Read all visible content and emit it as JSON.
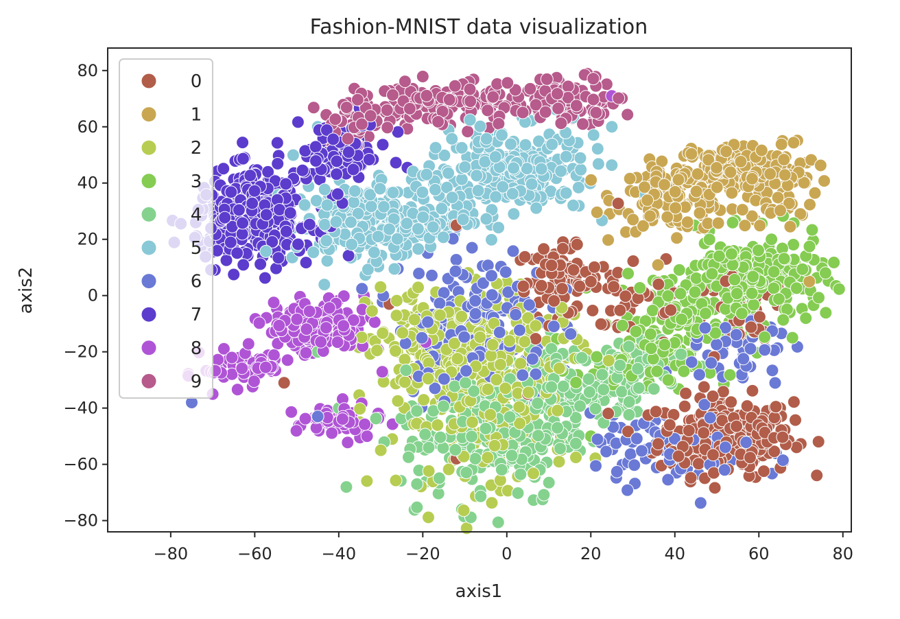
{
  "chart_data": {
    "type": "scatter",
    "title": "Fashion-MNIST data visualization",
    "xlabel": "axis1",
    "ylabel": "axis2",
    "xlim": [
      -95,
      82
    ],
    "ylim": [
      -84,
      88
    ],
    "xticks": [
      -80,
      -60,
      -40,
      -20,
      0,
      20,
      40,
      60,
      80
    ],
    "yticks": [
      -80,
      -60,
      -40,
      -20,
      0,
      20,
      40,
      60,
      80
    ],
    "grid": false,
    "legend_position": "upper-left",
    "series": [
      {
        "name": "0",
        "color": "#b15d4a",
        "clusters": [
          {
            "x": 52,
            "y": -50,
            "sx": 8,
            "sy": 7,
            "n": 260
          },
          {
            "x": 12,
            "y": 5,
            "sx": 5,
            "sy": 6,
            "n": 80
          },
          {
            "x": 30,
            "y": 0,
            "sx": 8,
            "sy": 10,
            "n": 40
          },
          {
            "x": 55,
            "y": -10,
            "sx": 6,
            "sy": 8,
            "n": 30
          }
        ],
        "points": [
          [
            -12,
            25
          ],
          [
            -53,
            -31
          ],
          [
            -28,
            -3
          ],
          [
            -24,
            -30
          ],
          [
            -12,
            -58
          ],
          [
            5,
            -35
          ]
        ]
      },
      {
        "name": "1",
        "color": "#c9a752",
        "clusters": [
          {
            "x": 40,
            "y": 35,
            "sx": 7,
            "sy": 6,
            "n": 140
          },
          {
            "x": 55,
            "y": 45,
            "sx": 7,
            "sy": 5,
            "n": 120
          },
          {
            "x": 66,
            "y": 40,
            "sx": 4,
            "sy": 8,
            "n": 60
          }
        ],
        "points": [
          [
            72,
            5
          ],
          [
            40,
            -5
          ]
        ]
      },
      {
        "name": "2",
        "color": "#b6cd52",
        "clusters": [
          {
            "x": -15,
            "y": -20,
            "sx": 9,
            "sy": 12,
            "n": 220
          },
          {
            "x": -5,
            "y": -45,
            "sx": 10,
            "sy": 12,
            "n": 150
          },
          {
            "x": 5,
            "y": -20,
            "sx": 7,
            "sy": 10,
            "n": 80
          }
        ],
        "points": [
          [
            -30,
            -55
          ],
          [
            -35,
            -45
          ]
        ]
      },
      {
        "name": "3",
        "color": "#85cc52",
        "clusters": [
          {
            "x": 58,
            "y": 5,
            "sx": 9,
            "sy": 8,
            "n": 230
          },
          {
            "x": 40,
            "y": -10,
            "sx": 7,
            "sy": 10,
            "n": 120
          },
          {
            "x": 30,
            "y": -25,
            "sx": 7,
            "sy": 6,
            "n": 50
          }
        ],
        "points": [
          [
            20,
            -50
          ],
          [
            63,
            20
          ]
        ]
      },
      {
        "name": "4",
        "color": "#84d28e",
        "clusters": [
          {
            "x": -5,
            "y": -50,
            "sx": 10,
            "sy": 12,
            "n": 200
          },
          {
            "x": 15,
            "y": -35,
            "sx": 9,
            "sy": 9,
            "n": 130
          },
          {
            "x": 28,
            "y": -25,
            "sx": 7,
            "sy": 6,
            "n": 60
          }
        ],
        "points": [
          [
            -45,
            -20
          ],
          [
            -40,
            -40
          ]
        ]
      },
      {
        "name": "5",
        "color": "#89c8d6",
        "clusters": [
          {
            "x": -35,
            "y": 25,
            "sx": 8,
            "sy": 7,
            "n": 180
          },
          {
            "x": 0,
            "y": 42,
            "sx": 10,
            "sy": 6,
            "n": 170
          },
          {
            "x": -18,
            "y": 30,
            "sx": 6,
            "sy": 6,
            "n": 80
          },
          {
            "x": 5,
            "y": 55,
            "sx": 10,
            "sy": 5,
            "n": 60
          }
        ],
        "points": [
          [
            -45,
            60
          ],
          [
            25,
            60
          ],
          [
            18,
            73
          ]
        ]
      },
      {
        "name": "6",
        "color": "#6a79d5",
        "clusters": [
          {
            "x": -8,
            "y": -10,
            "sx": 9,
            "sy": 14,
            "n": 170
          },
          {
            "x": 40,
            "y": -55,
            "sx": 10,
            "sy": 6,
            "n": 90
          },
          {
            "x": 55,
            "y": -20,
            "sx": 6,
            "sy": 8,
            "n": 50
          }
        ],
        "points": [
          [
            -75,
            -38
          ],
          [
            -45,
            -43
          ]
        ]
      },
      {
        "name": "7",
        "color": "#5c3ccd",
        "clusters": [
          {
            "x": -60,
            "y": 28,
            "sx": 7,
            "sy": 8,
            "n": 320
          },
          {
            "x": -40,
            "y": 50,
            "sx": 6,
            "sy": 6,
            "n": 90
          }
        ],
        "points": [
          [
            -33,
            65
          ]
        ]
      },
      {
        "name": "8",
        "color": "#b054d6",
        "clusters": [
          {
            "x": -45,
            "y": -12,
            "sx": 6,
            "sy": 5,
            "n": 150
          },
          {
            "x": -62,
            "y": -25,
            "sx": 5,
            "sy": 3,
            "n": 70
          },
          {
            "x": -40,
            "y": -45,
            "sx": 5,
            "sy": 3,
            "n": 50
          }
        ],
        "points": [
          [
            -70,
            -35
          ],
          [
            25,
            71
          ],
          [
            -34,
            0
          ]
        ]
      },
      {
        "name": "9",
        "color": "#b75a8c",
        "clusters": [
          {
            "x": -15,
            "y": 68,
            "sx": 10,
            "sy": 4,
            "n": 140
          },
          {
            "x": 15,
            "y": 70,
            "sx": 6,
            "sy": 4,
            "n": 90
          },
          {
            "x": -35,
            "y": 62,
            "sx": 5,
            "sy": 4,
            "n": 40
          }
        ],
        "points": []
      }
    ]
  }
}
